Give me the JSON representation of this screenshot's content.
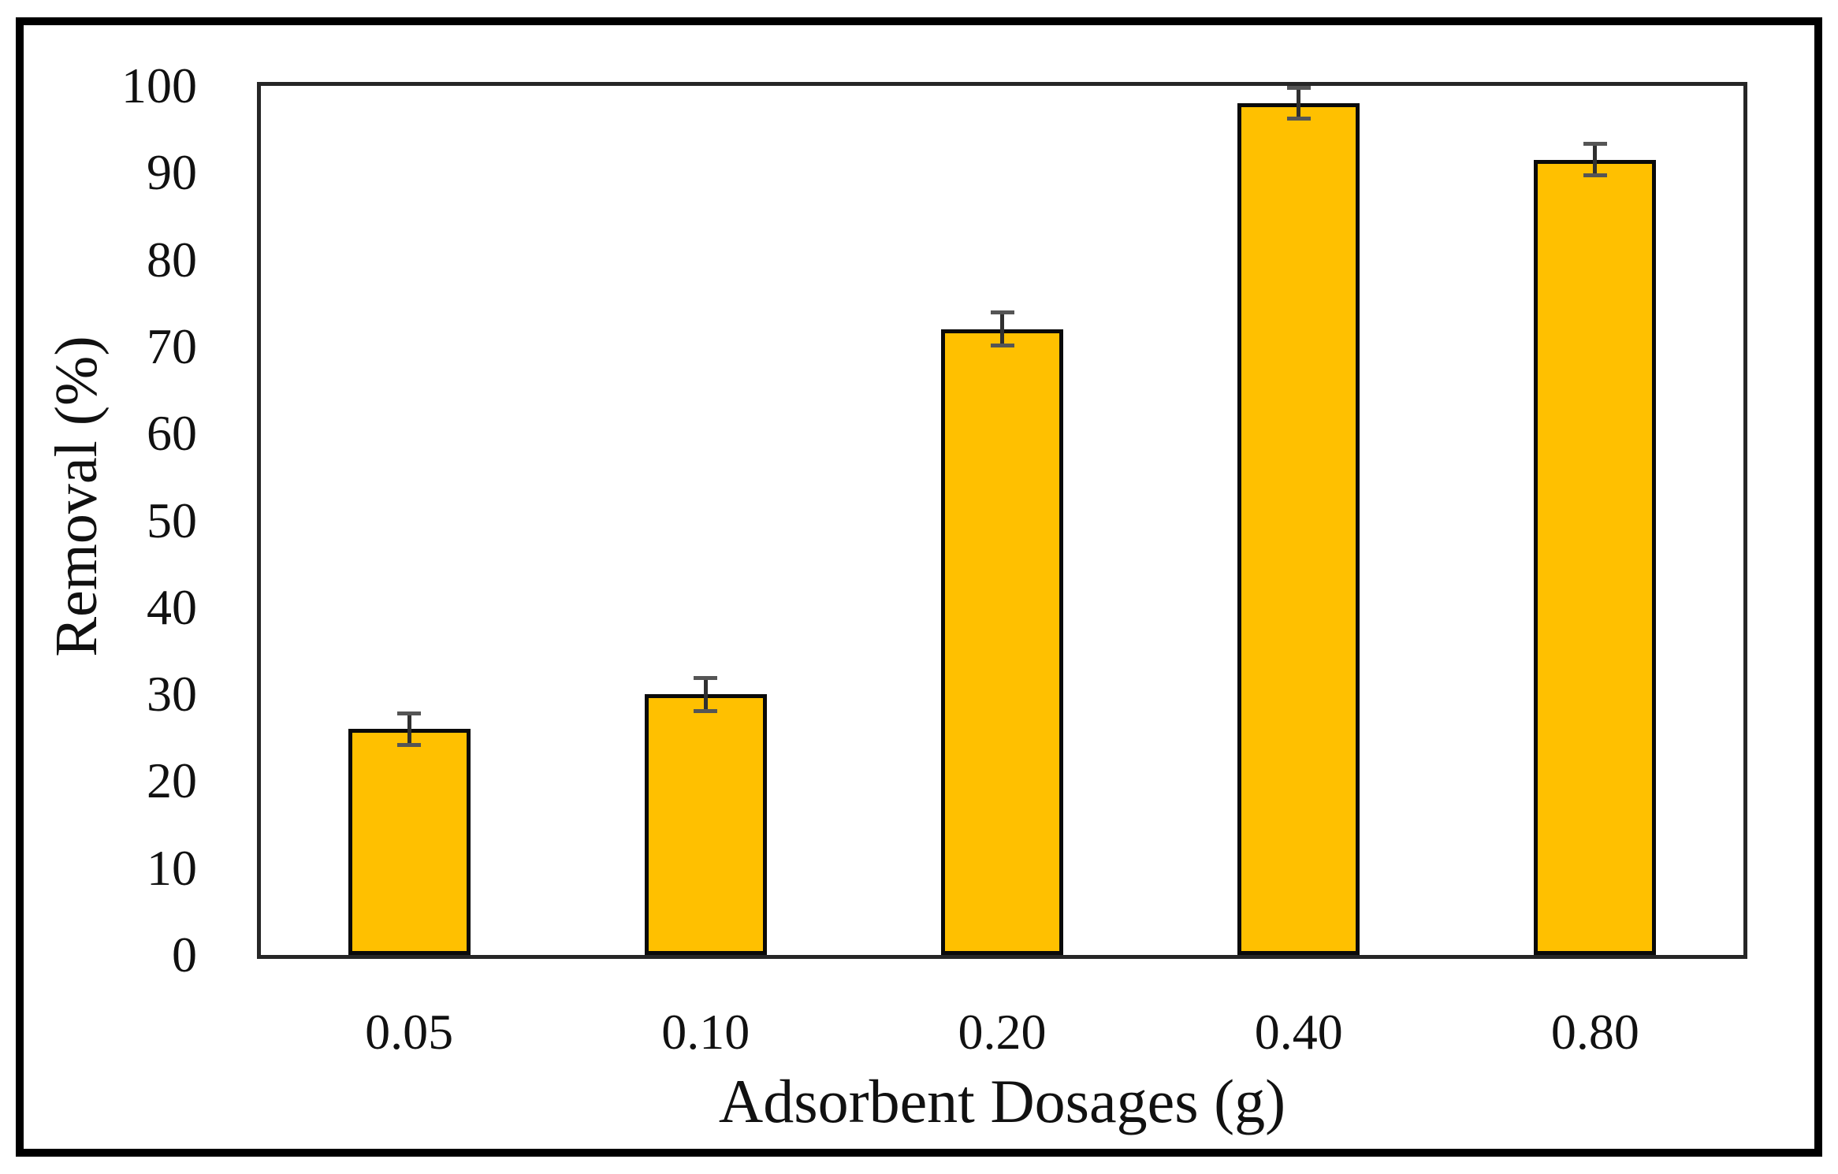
{
  "chart_data": {
    "type": "bar",
    "title": "",
    "xlabel": "Adsorbent Dosages (g)",
    "ylabel": "Removal (%)",
    "categories": [
      "0.05",
      "0.10",
      "0.20",
      "0.40",
      "0.80"
    ],
    "values": [
      26,
      30,
      72,
      98,
      91.5
    ],
    "error_bars": [
      1.8,
      1.9,
      1.9,
      1.8,
      1.8
    ],
    "ylim": [
      0,
      100
    ],
    "yticks": [
      0,
      10,
      20,
      30,
      40,
      50,
      60,
      70,
      80,
      90,
      100
    ],
    "grid": false,
    "legend": null,
    "bar_color": "#FFC000",
    "bar_border_color": "#0a0a0a",
    "error_bar_line_color": "#303030",
    "error_bar_cap_color": "#555555",
    "axis_color": "#262626",
    "frame_color": "#000000",
    "text_color": "#111111",
    "background": "#ffffff"
  }
}
